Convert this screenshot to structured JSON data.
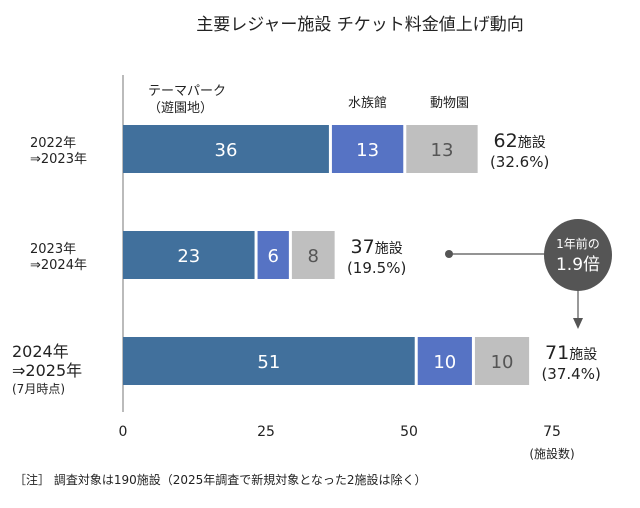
{
  "chart_data": {
    "type": "bar",
    "orientation": "horizontal",
    "stacked": true,
    "title": "主要レジャー施設 チケット料金値上げ動向",
    "categories": [
      {
        "lines": [
          "2022年",
          "⇒2023年"
        ]
      },
      {
        "lines": [
          "2023年",
          "⇒2024年"
        ]
      },
      {
        "lines": [
          "2024年",
          "⇒2025年"
        ],
        "note": "(7月時点)"
      }
    ],
    "series": [
      {
        "name_lines": [
          "テーマパーク",
          "（遊園地）"
        ],
        "values": [
          36,
          23,
          51
        ],
        "color": "#41709c",
        "label_color": "#ffffff"
      },
      {
        "name_lines": [
          "水族館"
        ],
        "values": [
          13,
          6,
          10
        ],
        "color": "#5673c4",
        "label_color": "#ffffff"
      },
      {
        "name_lines": [
          "動物園"
        ],
        "values": [
          13,
          8,
          10
        ],
        "color": "#bfbfbf",
        "label_color": "#555555"
      }
    ],
    "totals": [
      {
        "value": "62",
        "unit": "施設",
        "pct": "(32.6%)"
      },
      {
        "value": "37",
        "unit": "施設",
        "pct": "(19.5%)"
      },
      {
        "value": "71",
        "unit": "施設",
        "pct": "(37.4%)"
      }
    ],
    "xlim": [
      0,
      75
    ],
    "xticks": [
      0,
      25,
      50,
      75
    ],
    "xunit": "(施設数)",
    "annotation": {
      "lines": [
        "1年前の",
        "1.9倍"
      ],
      "color": "#555555"
    },
    "footnote": "［注］ 調査対象は190施設（2025年調査で新規対象となった2施設は除く）",
    "grid": false
  }
}
